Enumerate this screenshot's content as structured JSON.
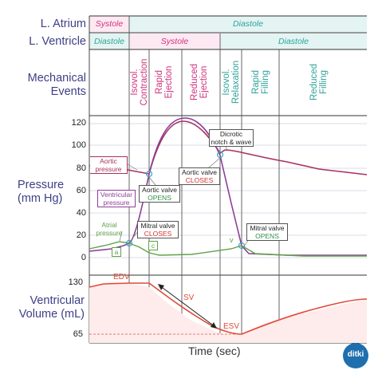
{
  "rows": {
    "atrium_label": "L. Atrium",
    "ventricle_label": "L. Ventricle",
    "mechanical_label": "Mechanical\nEvents",
    "pressure_label": "Pressure\n(mm Hg)",
    "volume_label": "Ventricular\nVolume (mL)"
  },
  "atrium_phases": {
    "systole": "Systole",
    "diastole": "Diastole"
  },
  "ventricle_phases": {
    "diastole1": "Diastole",
    "systole": "Systole",
    "diastole2": "Diastole"
  },
  "events": {
    "isovol_contraction": "Isovol.\nContraction",
    "rapid_ejection": "Rapid\nEjection",
    "reduced_ejection": "Reduced\nEjection",
    "isovol_relaxation": "Isovol.\nRelaxation",
    "rapid_filling": "Rapid\nFilling",
    "reduced_filling": "Reduced\nFilling"
  },
  "pressure_ticks": [
    "120",
    "100",
    "80",
    "60",
    "40",
    "20",
    "0"
  ],
  "volume_ticks": [
    "130",
    "65"
  ],
  "annotations": {
    "aortic_pressure": "Aortic\npressure",
    "ventricular_pressure": "Ventricular\npressure",
    "atrial_pressure": "Atrial\npressure",
    "dicrotic": "Dicrotic\nnotch & wave",
    "aortic_opens_1": "Aortic valve",
    "aortic_opens_2": "OPENS",
    "aortic_closes_1": "Aortic valve",
    "aortic_closes_2": "CLOSES",
    "mitral_closes_1": "Mitral valve",
    "mitral_closes_2": "CLOSES",
    "mitral_opens_1": "Mitral valve",
    "mitral_opens_2": "OPENS",
    "wave_a": "a",
    "wave_c": "c",
    "wave_v": "v",
    "edv": "EDV",
    "sv": "SV",
    "esv": "ESV"
  },
  "x_axis": "Time (sec)",
  "logo": "ditki",
  "colors": {
    "magenta": "#d0337e",
    "teal": "#2fa39a",
    "aortic": "#a6325c",
    "ventricular": "#8f3d9a",
    "atrial": "#5ea347",
    "volume": "#e04a3a",
    "label": "#3d3f86"
  }
}
